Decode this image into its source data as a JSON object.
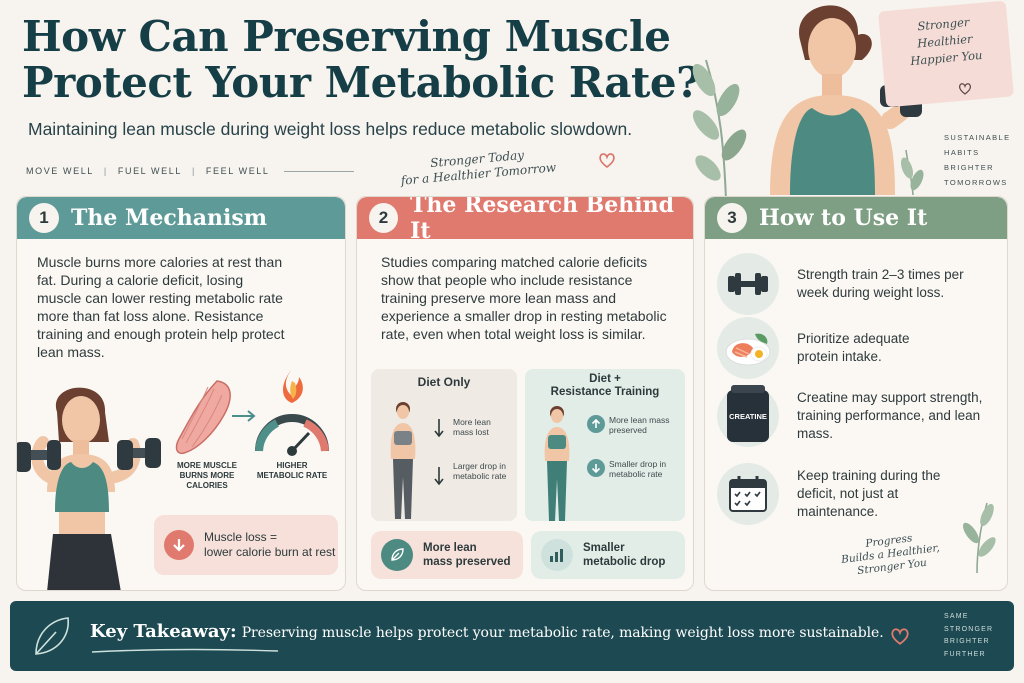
{
  "header": {
    "title_line1": "How Can Preserving Muscle",
    "title_line2": "Protect Your Metabolic Rate?",
    "subtitle": "Maintaining lean muscle during weight loss helps reduce metabolic slowdown.",
    "tagline": [
      "MOVE WELL",
      "FUEL WELL",
      "FEEL WELL"
    ],
    "script_note_line1": "Stronger Today",
    "script_note_line2": "for a Healthier Tomorrow",
    "pink_note": [
      "Stronger",
      "Healthier",
      "Happier You"
    ],
    "side_words": [
      "SUSTAINABLE",
      "HABITS",
      "BRIGHTER",
      "TOMORROWS"
    ]
  },
  "mechanism": {
    "number": "1",
    "title": "The Mechanism",
    "body": "Muscle burns more calories at rest than fat. During a calorie deficit, losing muscle can lower resting metabolic rate more than fat loss alone. Resistance training and enough protein help protect lean mass.",
    "label_muscle": "MORE MUSCLE BURNS MORE CALORIES",
    "label_meta": "HIGHER METABOLIC RATE",
    "callout_line1": "Muscle loss =",
    "callout_line2": "lower calorie burn at rest"
  },
  "research": {
    "number": "2",
    "title": "The Research Behind It",
    "body": "Studies comparing matched calorie deficits show that people who include resistance training preserve more lean mass and experience a smaller drop in resting metabolic rate, even when total weight loss is similar.",
    "left_head": "Diet Only",
    "left_items": [
      "More lean mass lost",
      "Larger drop in metabolic rate"
    ],
    "right_head_line1": "Diet +",
    "right_head_line2": "Resistance Training",
    "right_items": [
      "More lean mass preserved",
      "Smaller drop in metabolic rate"
    ],
    "badge_left_line1": "More lean",
    "badge_left_line2": "mass preserved",
    "badge_right_line1": "Smaller",
    "badge_right_line2": "metabolic drop"
  },
  "usage": {
    "number": "3",
    "title": "How to Use It",
    "items": [
      "Strength train 2–3 times per week during weight loss.",
      "Prioritize adequate protein intake.",
      "Creatine may support strength, training performance, and lean mass.",
      "Keep training during the deficit, not just at maintenance."
    ],
    "jar_label": "CREATINE",
    "script_lines": [
      "Progress",
      "Builds a Healthier,",
      "Stronger You"
    ]
  },
  "takeaway": {
    "label": "Key Takeaway:",
    "text": "Preserving muscle helps protect your metabolic rate, making weight loss more sustainable.",
    "side_words": [
      "SAME",
      "STRONGER",
      "BRIGHTER",
      "FURTHER"
    ]
  },
  "colors": {
    "teal": "#5e9b98",
    "coral": "#e07a6e",
    "sage": "#7f9f84",
    "navy": "#1d4a52"
  }
}
